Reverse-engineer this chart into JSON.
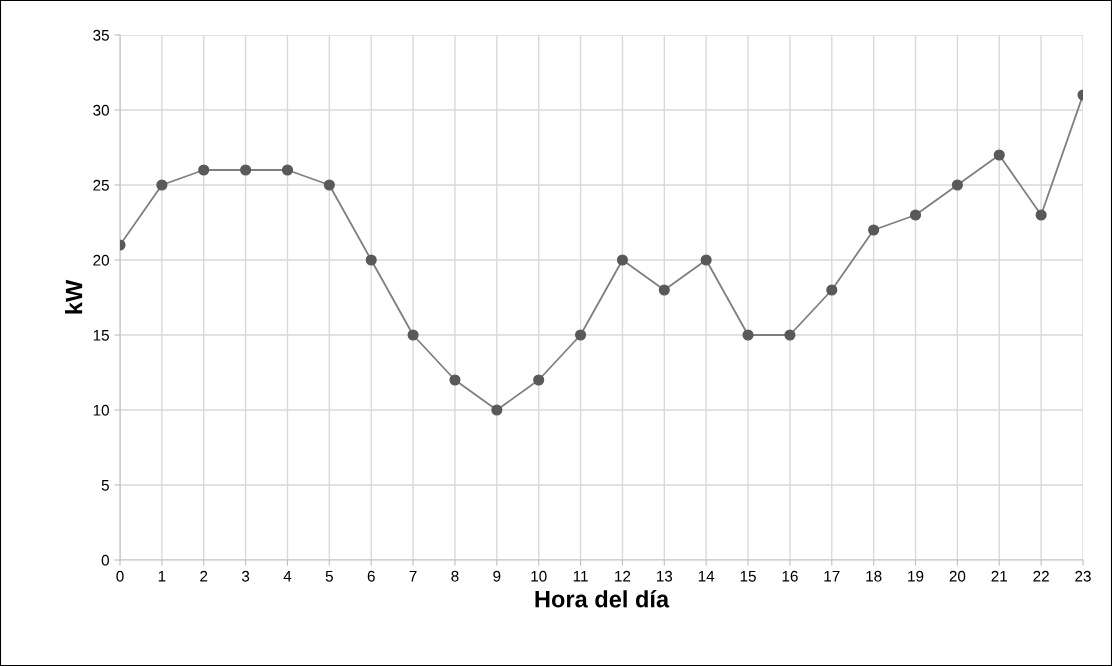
{
  "chart_data": {
    "type": "line",
    "xlabel": "Hora del día",
    "ylabel": "kW",
    "x": [
      0,
      1,
      2,
      3,
      4,
      5,
      6,
      7,
      8,
      9,
      10,
      11,
      12,
      13,
      14,
      15,
      16,
      17,
      18,
      19,
      20,
      21,
      22,
      23
    ],
    "series": [
      {
        "color": "#7f7f7f",
        "values": [
          21,
          25,
          26,
          26,
          26,
          25,
          20,
          15,
          12,
          10,
          12,
          15,
          20,
          18,
          20,
          15,
          15,
          18,
          22,
          23,
          25,
          27,
          23,
          31
        ]
      }
    ],
    "xlim": [
      0,
      23
    ],
    "xticks": [
      0,
      1,
      2,
      3,
      4,
      5,
      6,
      7,
      8,
      9,
      10,
      11,
      12,
      13,
      14,
      15,
      16,
      17,
      18,
      19,
      20,
      21,
      22,
      23
    ],
    "ylim": [
      0,
      35
    ],
    "yticks": [
      0,
      5,
      10,
      15,
      20,
      25,
      30,
      35
    ],
    "grid": true,
    "marker": "circle",
    "line_style": "solid",
    "legend": false
  }
}
